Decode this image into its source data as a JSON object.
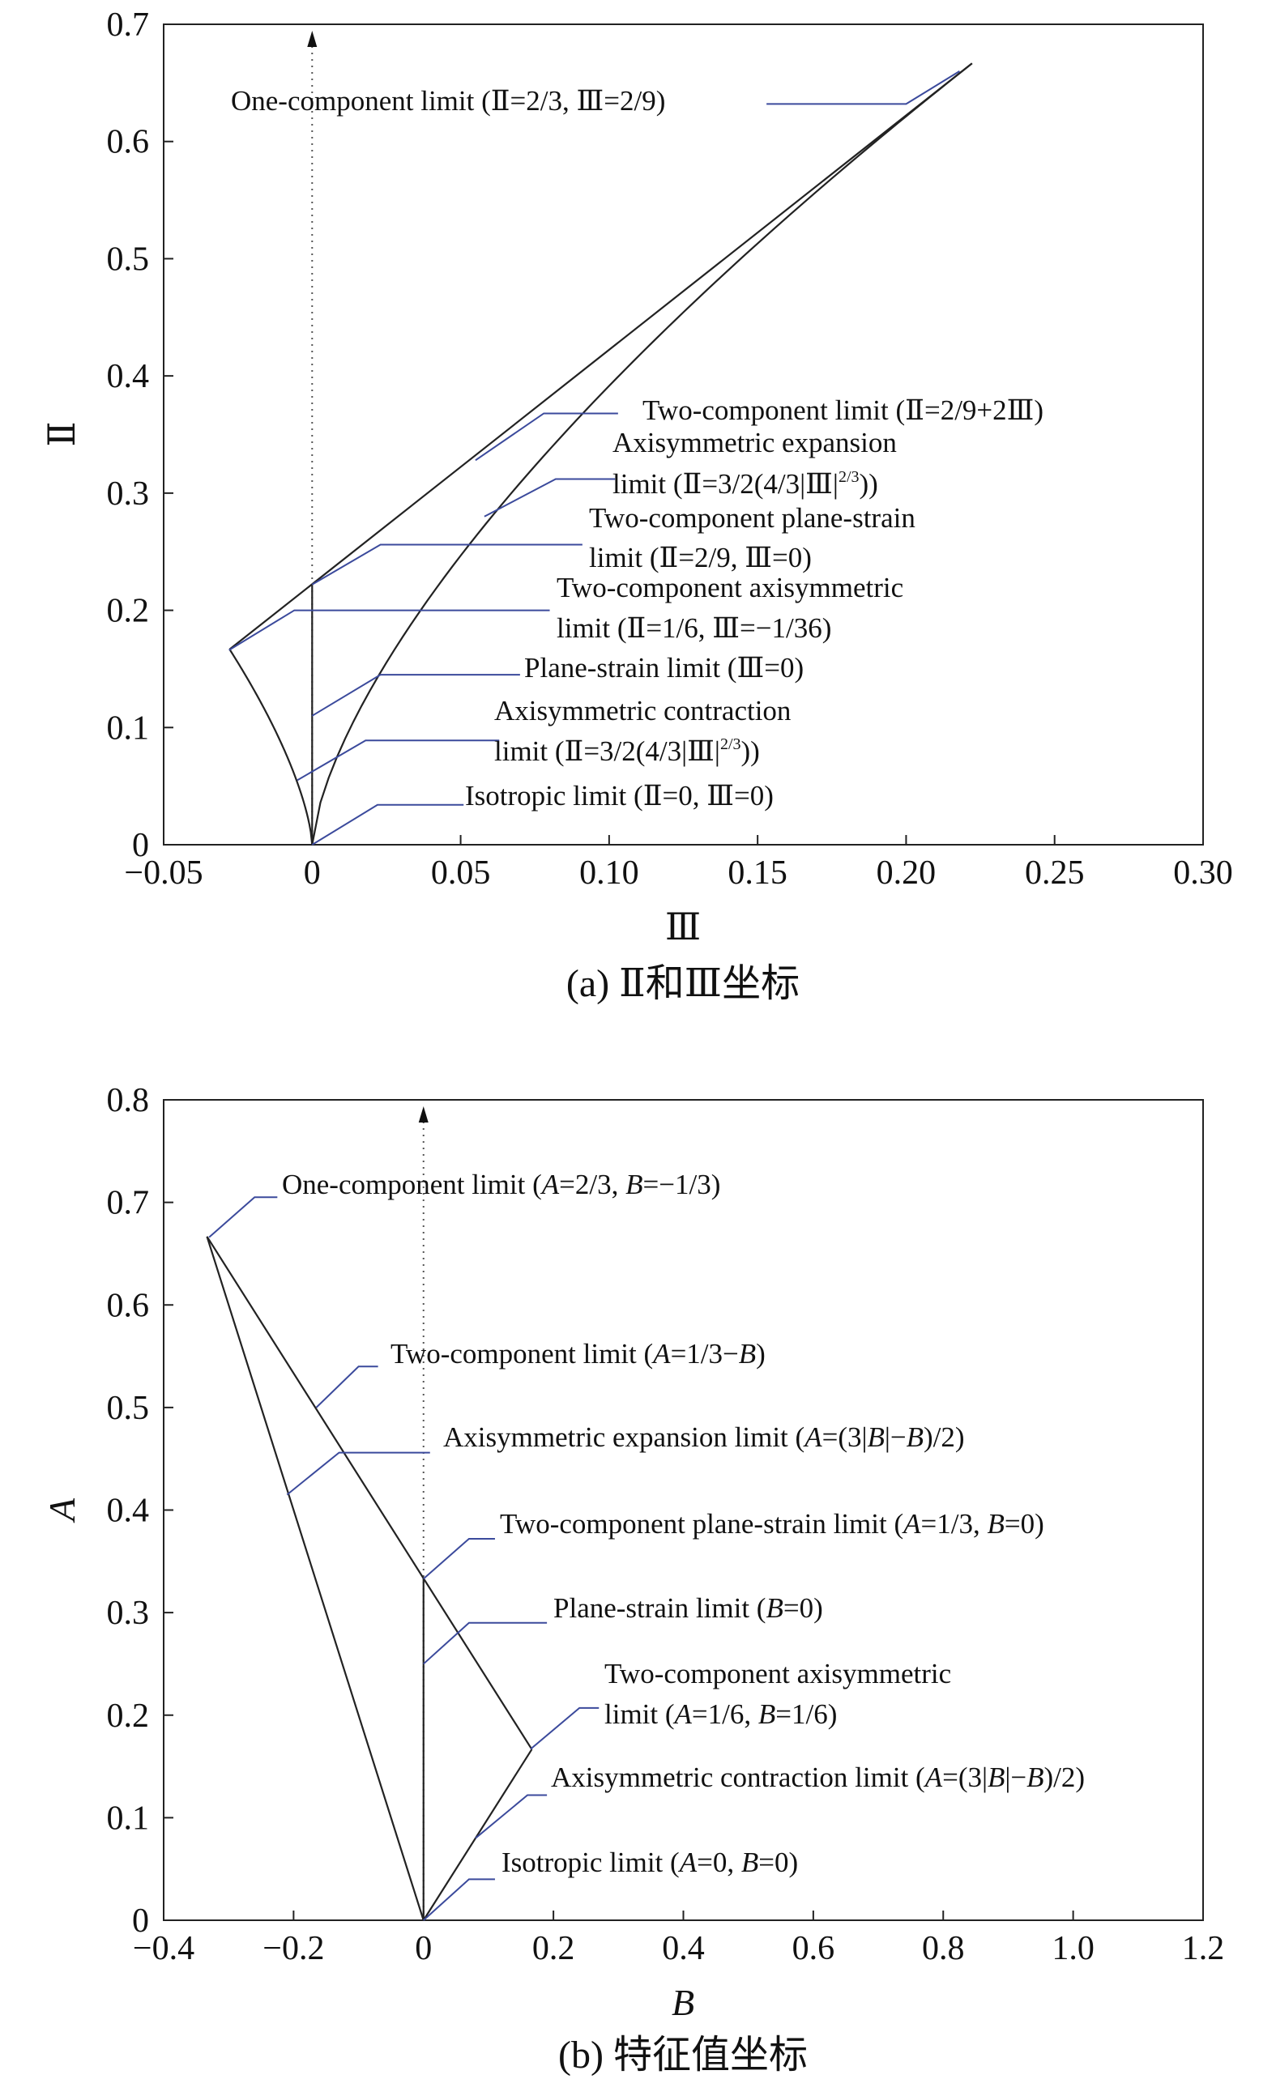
{
  "chart_data": [
    {
      "type": "line",
      "panel": "a",
      "caption": "(a) Ⅱ和Ⅲ坐标",
      "xlabel": "Ⅲ",
      "ylabel": "Ⅱ",
      "xlim": [
        -0.05,
        0.3
      ],
      "ylim": [
        0,
        0.7
      ],
      "xticks": [
        "−0.05",
        "0",
        "0.05",
        "0.10",
        "0.15",
        "0.20",
        "0.25",
        "0.30"
      ],
      "yticks": [
        "0",
        "0.1",
        "0.2",
        "0.3",
        "0.4",
        "0.5",
        "0.6",
        "0.7"
      ],
      "key_points": [
        {
          "name": "Isotropic limit",
          "x": 0,
          "y": 0
        },
        {
          "name": "One-component limit",
          "x": 0.2222,
          "y": 0.6667
        },
        {
          "name": "Two-component axisymmetric limit",
          "x": -0.0278,
          "y": 0.1667
        },
        {
          "name": "Two-component plane-strain limit",
          "x": 0,
          "y": 0.2222
        }
      ],
      "series": [
        {
          "name": "Two-component limit",
          "relation": "Ⅱ=2/9+2Ⅲ",
          "x_range": [
            -0.0278,
            0.2222
          ]
        },
        {
          "name": "Axisymmetric expansion limit",
          "relation": "Ⅱ=3/2(4/3|Ⅲ|)^(2/3)",
          "x_range": [
            0,
            0.2222
          ]
        },
        {
          "name": "Axisymmetric contraction limit",
          "relation": "Ⅱ=3/2(4/3|Ⅲ|)^(2/3)",
          "x_range": [
            -0.0278,
            0
          ]
        },
        {
          "name": "Plane-strain limit",
          "relation": "Ⅲ=0",
          "y_range": [
            0,
            0.2222
          ]
        }
      ],
      "annotations": [
        {
          "id": "one",
          "parts": [
            "One-component limit (Ⅱ=2/3, Ⅲ=2/9)"
          ]
        },
        {
          "id": "two",
          "parts": [
            "Two-component limit (Ⅱ=2/9+2Ⅲ)"
          ]
        },
        {
          "id": "axiexp1",
          "parts": [
            "Axisymmetric expansion"
          ]
        },
        {
          "id": "axiexp2",
          "parts": [
            "limit (Ⅱ=3/2(4/3|Ⅲ|",
            "2/3",
            "))"
          ]
        },
        {
          "id": "tcps1",
          "parts": [
            "Two-component plane-strain"
          ]
        },
        {
          "id": "tcps2",
          "parts": [
            "limit (Ⅱ=2/9, Ⅲ=0)"
          ]
        },
        {
          "id": "tcax1",
          "parts": [
            "Two-component axisymmetric"
          ]
        },
        {
          "id": "tcax2",
          "parts": [
            "limit (Ⅱ=1/6, Ⅲ=−1/36)"
          ]
        },
        {
          "id": "ps",
          "parts": [
            "Plane-strain limit (Ⅲ=0)"
          ]
        },
        {
          "id": "axcon1",
          "parts": [
            "Axisymmetric contraction"
          ]
        },
        {
          "id": "axcon2",
          "parts": [
            "limit (Ⅱ=3/2(4/3|Ⅲ|",
            "2/3",
            "))"
          ]
        },
        {
          "id": "iso",
          "parts": [
            "Isotropic limit (Ⅱ=0, Ⅲ=0)"
          ]
        }
      ]
    },
    {
      "type": "line",
      "panel": "b",
      "caption": "(b) 特征值坐标",
      "xlabel": "B",
      "ylabel": "A",
      "xlim": [
        -0.4,
        1.2
      ],
      "ylim": [
        0,
        0.8
      ],
      "xticks": [
        "−0.4",
        "−0.2",
        "0",
        "0.2",
        "0.4",
        "0.6",
        "0.8",
        "1.0",
        "1.2"
      ],
      "yticks": [
        "0",
        "0.1",
        "0.2",
        "0.3",
        "0.4",
        "0.5",
        "0.6",
        "0.7",
        "0.8"
      ],
      "key_points": [
        {
          "name": "Isotropic limit",
          "x": 0,
          "y": 0
        },
        {
          "name": "One-component limit",
          "x": -0.3333,
          "y": 0.6667
        },
        {
          "name": "Two-component axisymmetric limit",
          "x": 0.1667,
          "y": 0.1667
        },
        {
          "name": "Two-component plane-strain limit",
          "x": 0,
          "y": 0.3333
        }
      ],
      "series": [
        {
          "name": "Two-component limit",
          "relation": "A=1/3−B",
          "x_range": [
            -0.3333,
            0.1667
          ]
        },
        {
          "name": "Axisymmetric expansion limit",
          "relation": "A=(3|B|−B)/2",
          "x_range": [
            -0.3333,
            0
          ]
        },
        {
          "name": "Axisymmetric contraction limit",
          "relation": "A=(3|B|−B)/2",
          "x_range": [
            0,
            0.1667
          ]
        },
        {
          "name": "Plane-strain limit",
          "relation": "B=0",
          "y_range": [
            0,
            0.3333
          ]
        }
      ],
      "annotations": [
        {
          "id": "one",
          "parts": [
            "One-component limit (",
            "A",
            "=2/3, ",
            "B",
            "=−1/3)"
          ]
        },
        {
          "id": "two",
          "parts": [
            "Two-component limit (",
            "A",
            "=1/3−",
            "B",
            ")"
          ]
        },
        {
          "id": "axiexp",
          "parts": [
            "Axisymmetric expansion limit (",
            "A",
            "=(3|",
            "B",
            "|−",
            "B",
            ")/2)"
          ]
        },
        {
          "id": "tcps",
          "parts": [
            "Two-component plane-strain limit (",
            "A",
            "=1/3, ",
            "B",
            "=0)"
          ]
        },
        {
          "id": "ps",
          "parts": [
            "Plane-strain limit (",
            "B",
            "=0)"
          ]
        },
        {
          "id": "tcax1",
          "parts": [
            "Two-component axisymmetric"
          ]
        },
        {
          "id": "tcax2",
          "parts": [
            "limit (",
            "A",
            "=1/6, ",
            "B",
            "=1/6)"
          ]
        },
        {
          "id": "axcon",
          "parts": [
            "Axisymmetric contraction limit (",
            "A",
            "=(3|",
            "B",
            "|−",
            "B",
            ")/2)"
          ]
        },
        {
          "id": "iso",
          "parts": [
            "Isotropic limit (",
            "A",
            "=0, ",
            "B",
            "=0)"
          ]
        }
      ]
    }
  ]
}
